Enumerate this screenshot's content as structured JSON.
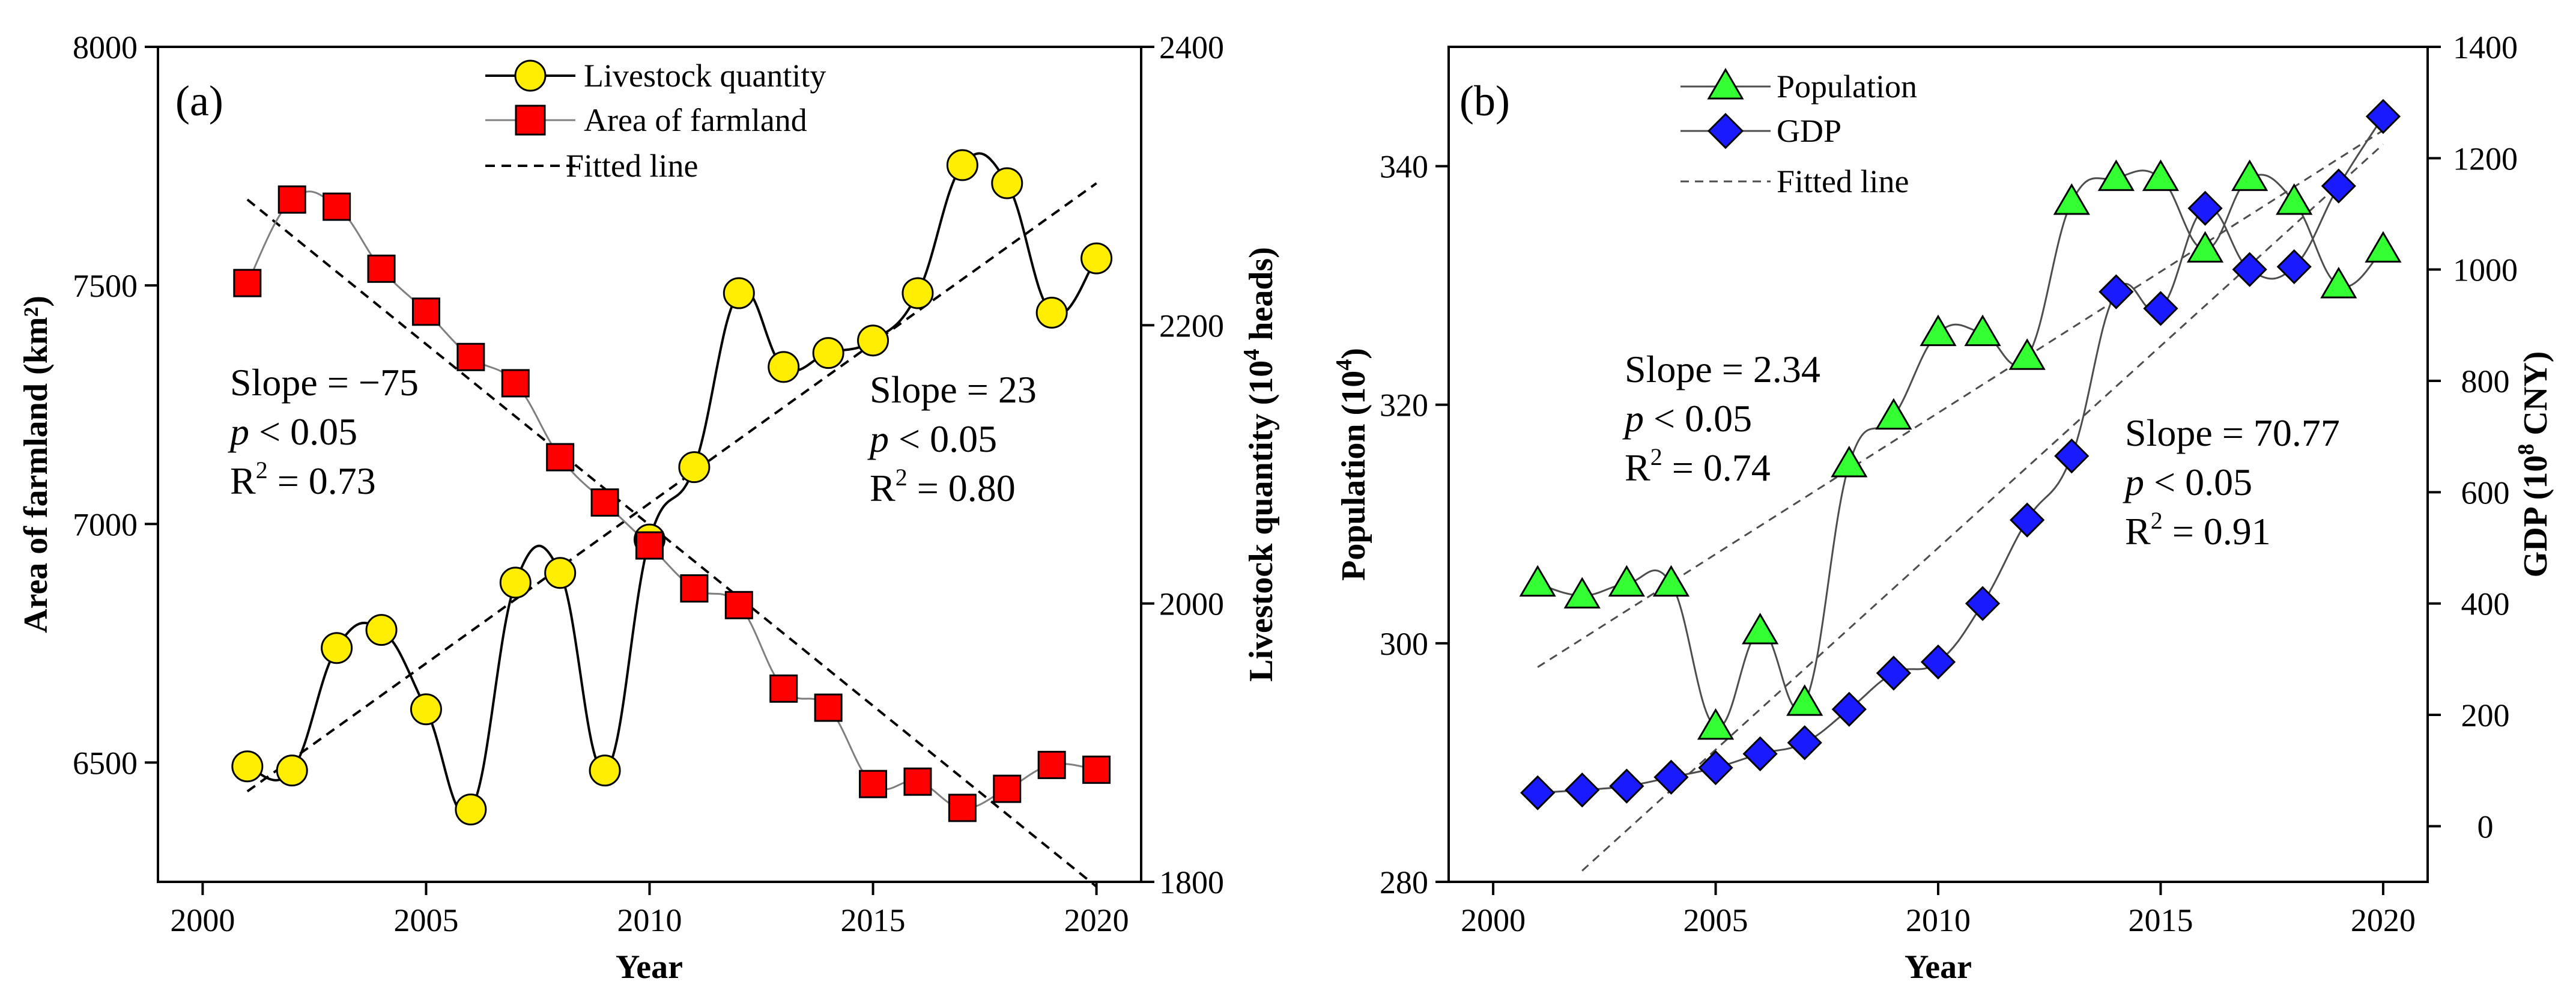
{
  "chart_data": [
    {
      "type": "line",
      "panel_label": "(a)",
      "xlabel": "Year",
      "ylabel_left": "Area of farmland (km²)",
      "ylabel_right_parts": [
        "Livestock quantity (10",
        "4",
        " heads)"
      ],
      "xlim": [
        1999,
        2021
      ],
      "ylim_left": [
        6250,
        8000
      ],
      "ylim_right": [
        1800,
        2400
      ],
      "xticks": [
        2000,
        2005,
        2010,
        2015,
        2020
      ],
      "yticks_left": [
        6500,
        7000,
        7500,
        8000
      ],
      "yticks_right": [
        1800,
        2000,
        2200,
        2400
      ],
      "x": [
        2001,
        2002,
        2003,
        2004,
        2005,
        2006,
        2007,
        2008,
        2009,
        2010,
        2011,
        2012,
        2013,
        2014,
        2015,
        2016,
        2017,
        2018,
        2019,
        2020
      ],
      "series": [
        {
          "name": "Livestock quantity",
          "axis": "right",
          "marker": "circle",
          "color": "#ffee00",
          "line_color": "#000000",
          "values": [
            1883,
            1880,
            1968,
            1981,
            1924,
            1852,
            2015,
            2022,
            1880,
            2046,
            2098,
            2223,
            2170,
            2180,
            2189,
            2223,
            2315,
            2302,
            2209,
            2248
          ]
        },
        {
          "name": "Area of farmland",
          "axis": "left",
          "marker": "square",
          "color": "#ff0000",
          "line_color": "#7f7f7f",
          "values": [
            7505,
            7680,
            7665,
            7535,
            7445,
            7350,
            7295,
            7140,
            7045,
            6955,
            6865,
            6830,
            6655,
            6615,
            6455,
            6460,
            6405,
            6445,
            6495,
            6485
          ]
        }
      ],
      "fitted_lines": [
        {
          "axis": "left",
          "from": [
            2001,
            7680
          ],
          "to": [
            2020,
            6240
          ]
        },
        {
          "axis": "right",
          "from": [
            2001,
            1865
          ],
          "to": [
            2020,
            2302
          ]
        }
      ],
      "fitted_legend": "Fitted line",
      "annotations": [
        {
          "slope": "Slope = −75",
          "p_label": "p",
          "p_rest": " < 0.05",
          "r2_base": "R",
          "r2_sup": "2",
          "r2_rest": " = 0.73"
        },
        {
          "slope": "Slope = 23",
          "p_label": "p",
          "p_rest": " < 0.05",
          "r2_base": "R",
          "r2_sup": "2",
          "r2_rest": " = 0.80"
        }
      ]
    },
    {
      "type": "line",
      "panel_label": "(b)",
      "xlabel": "Year",
      "ylabel_left_parts": [
        "Population (10",
        "4",
        ")"
      ],
      "ylabel_right_parts": [
        "GDP (10",
        "8",
        " CNY)"
      ],
      "xlim": [
        1999,
        2021
      ],
      "ylim_left": [
        280,
        350
      ],
      "ylim_right": [
        -100,
        1400
      ],
      "xticks": [
        2000,
        2005,
        2010,
        2015,
        2020
      ],
      "yticks_left": [
        280,
        300,
        320,
        340
      ],
      "yticks_right": [
        0,
        200,
        400,
        600,
        800,
        1000,
        1200,
        1400
      ],
      "x": [
        2001,
        2002,
        2003,
        2004,
        2005,
        2006,
        2007,
        2008,
        2009,
        2010,
        2011,
        2012,
        2013,
        2014,
        2015,
        2016,
        2017,
        2018,
        2019,
        2020
      ],
      "series": [
        {
          "name": "Population",
          "axis": "left",
          "marker": "triangle",
          "color": "#33ff33",
          "line_color": "#4d4d4d",
          "values": [
            305,
            304,
            305,
            305,
            293,
            301,
            295,
            315,
            319,
            326,
            326,
            324,
            337,
            339,
            339,
            333,
            339,
            337,
            330,
            333
          ]
        },
        {
          "name": "GDP",
          "axis": "right",
          "marker": "diamond",
          "color": "#1a1aff",
          "line_color": "#4d4d4d",
          "values": [
            60,
            65,
            72,
            88,
            105,
            130,
            150,
            210,
            275,
            295,
            400,
            550,
            665,
            960,
            930,
            1110,
            1000,
            1005,
            1150,
            1275
          ]
        }
      ],
      "fitted_lines": [
        {
          "axis": "left",
          "from": [
            2001,
            298
          ],
          "to": [
            2020,
            343
          ]
        },
        {
          "axis": "right",
          "from": [
            2002,
            -80
          ],
          "to": [
            2020,
            1225
          ]
        }
      ],
      "fitted_legend": "Fitted line",
      "annotations": [
        {
          "slope": "Slope = 2.34",
          "p_label": "p",
          "p_rest": " < 0.05",
          "r2_base": "R",
          "r2_sup": "2",
          "r2_rest": " = 0.74"
        },
        {
          "slope": "Slope = 70.77",
          "p_label": "p",
          "p_rest": " < 0.05",
          "r2_base": "R",
          "r2_sup": "2",
          "r2_rest": " = 0.91"
        }
      ]
    }
  ]
}
